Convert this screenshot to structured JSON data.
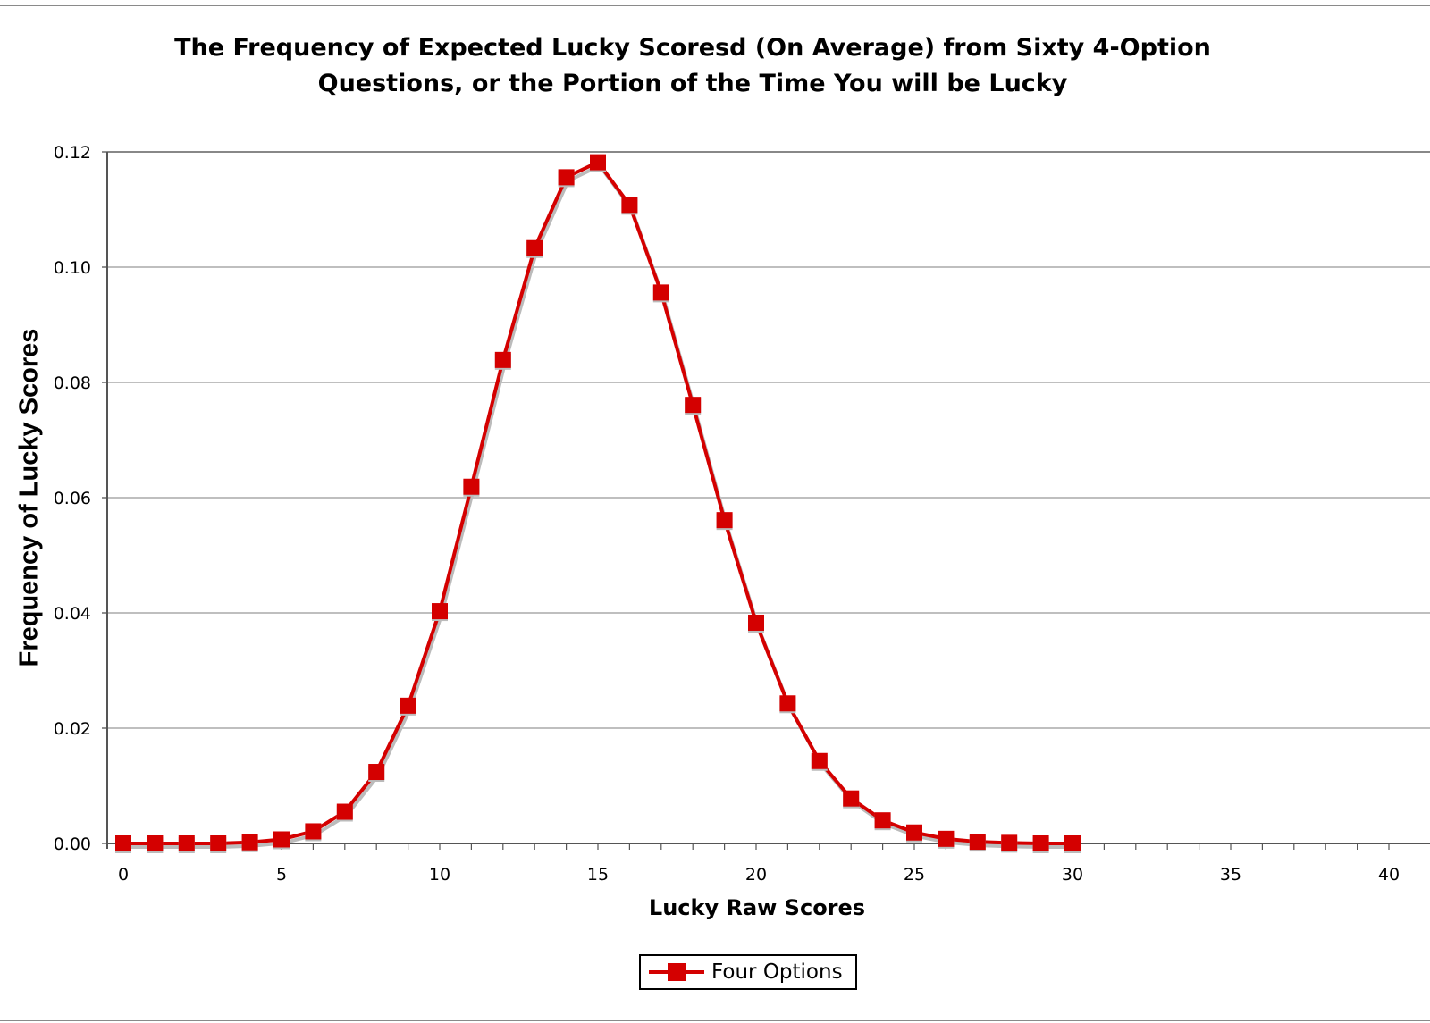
{
  "chart_data": {
    "type": "line",
    "title": "The Frequency of Expected Lucky Scoresd (On Average) from Sixty 4-Option Questions, or the Portion of the Time You will be Lucky",
    "title_lines": [
      "The Frequency of Expected Lucky Scoresd (On Average) from Sixty 4-Option",
      "Questions, or the Portion of the Time You will be Lucky"
    ],
    "xlabel": "Lucky Raw Scores",
    "ylabel": "Frequency of Lucky Scores",
    "xlim": [
      0,
      40
    ],
    "ylim": [
      0,
      0.12
    ],
    "x_ticks": [
      0,
      5,
      10,
      15,
      20,
      25,
      30,
      35,
      40
    ],
    "x_minor_step": 1,
    "y_ticks": [
      "0.00",
      "0.02",
      "0.04",
      "0.06",
      "0.08",
      "0.10",
      "0.12"
    ],
    "grid": {
      "horizontal": true,
      "vertical": false
    },
    "legend_position": "bottom",
    "series": [
      {
        "name": "Four Options",
        "color": "#d40000",
        "marker": "square",
        "x": [
          0,
          1,
          2,
          3,
          4,
          5,
          6,
          7,
          8,
          9,
          10,
          11,
          12,
          13,
          14,
          15,
          16,
          17,
          18,
          19,
          20,
          21,
          22,
          23,
          24,
          25,
          26,
          27,
          28,
          29,
          30
        ],
        "values": [
          0.0,
          0.0,
          0.0,
          0.0,
          0.0002,
          0.0007,
          0.0021,
          0.0055,
          0.0124,
          0.0239,
          0.0403,
          0.0619,
          0.0839,
          0.1033,
          0.1156,
          0.1182,
          0.1108,
          0.0956,
          0.0761,
          0.0561,
          0.0383,
          0.0243,
          0.0143,
          0.0078,
          0.004,
          0.0019,
          0.0008,
          0.0003,
          0.0001,
          0.0,
          0.0
        ]
      }
    ]
  },
  "legend": {
    "label": "Four Options"
  }
}
